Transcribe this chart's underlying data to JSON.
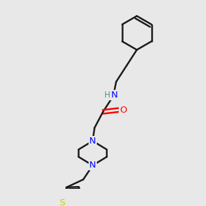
{
  "bg_color": "#e8e8e8",
  "bond_color": "#1a1a1a",
  "N_color": "#0000ff",
  "O_color": "#ff0000",
  "S_color": "#cccc00",
  "H_color": "#4a9a9a",
  "line_width": 1.8,
  "figsize": [
    3.0,
    3.0
  ],
  "dpi": 100,
  "xlim": [
    0,
    10
  ],
  "ylim": [
    0,
    10
  ]
}
